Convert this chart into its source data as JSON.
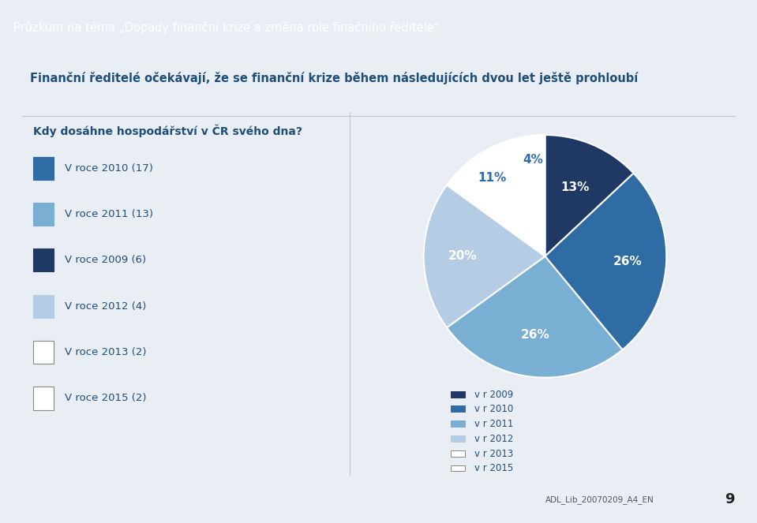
{
  "title_bar": "Průzkum na téma „Dopady finanční krize a změna role finačního ředitele“",
  "subtitle": "Finanční ředitelé očekávají, že se finanční krize během následujících dvou let ještě prohloubí",
  "question": "Kdy dosáhne hospodářství v ČR svého dna?",
  "legend_items": [
    "V roce 2010 (17)",
    "V roce 2011 (13)",
    "V roce 2009 (6)",
    "V roce 2012 (4)",
    "V roce 2013 (2)",
    "V roce 2015 (2)"
  ],
  "pie_labels": [
    "v r 2009",
    "v r 2010",
    "v r 2011",
    "v r 2012",
    "v r 2013",
    "v r 2015"
  ],
  "pie_values": [
    13,
    26,
    26,
    20,
    11,
    4
  ],
  "pie_colors": [
    "#1F3864",
    "#2F6CA4",
    "#7AAFD4",
    "#B4CCE4",
    "#FFFFFF",
    "#FFFFFF"
  ],
  "pie_percentages": [
    "13%",
    "26%",
    "26%",
    "20%",
    "11%",
    "4%"
  ],
  "pie_pct_colors": [
    "white",
    "white",
    "white",
    "white",
    "#2F6CA4",
    "#2F6CA4"
  ],
  "left_marker_colors": [
    "#2F6CA4",
    "#7AAFD4",
    "#1F3864",
    "#B4CCE4",
    "#1F3864",
    "#1F3864"
  ],
  "left_marker_edges": [
    "#2F6CA4",
    "#7AAFD4",
    "#1F3864",
    "#B4CCE4",
    "#555555",
    "#555555"
  ],
  "pie_legend_marker_colors": [
    "#1F3864",
    "#2F6CA4",
    "#7AAFD4",
    "#B4CCE4",
    "#FFFFFF",
    "#FFFFFF"
  ],
  "pie_legend_marker_edges": [
    "#1F3864",
    "#2F6CA4",
    "#7AAFD4",
    "#B4CCE4",
    "#888888",
    "#888888"
  ],
  "title_bar_color": "#1F4E79",
  "title_text_color": "#FFFFFF",
  "subtitle_color": "#1F4E79",
  "question_color": "#1F4E79",
  "left_legend_color": "#1F4E79",
  "chart_bg": "#FFFFFF",
  "outer_bg": "#E8EEF4",
  "page_number": "9",
  "footer_text": "ADL_Lib_20070209_A4_EN"
}
